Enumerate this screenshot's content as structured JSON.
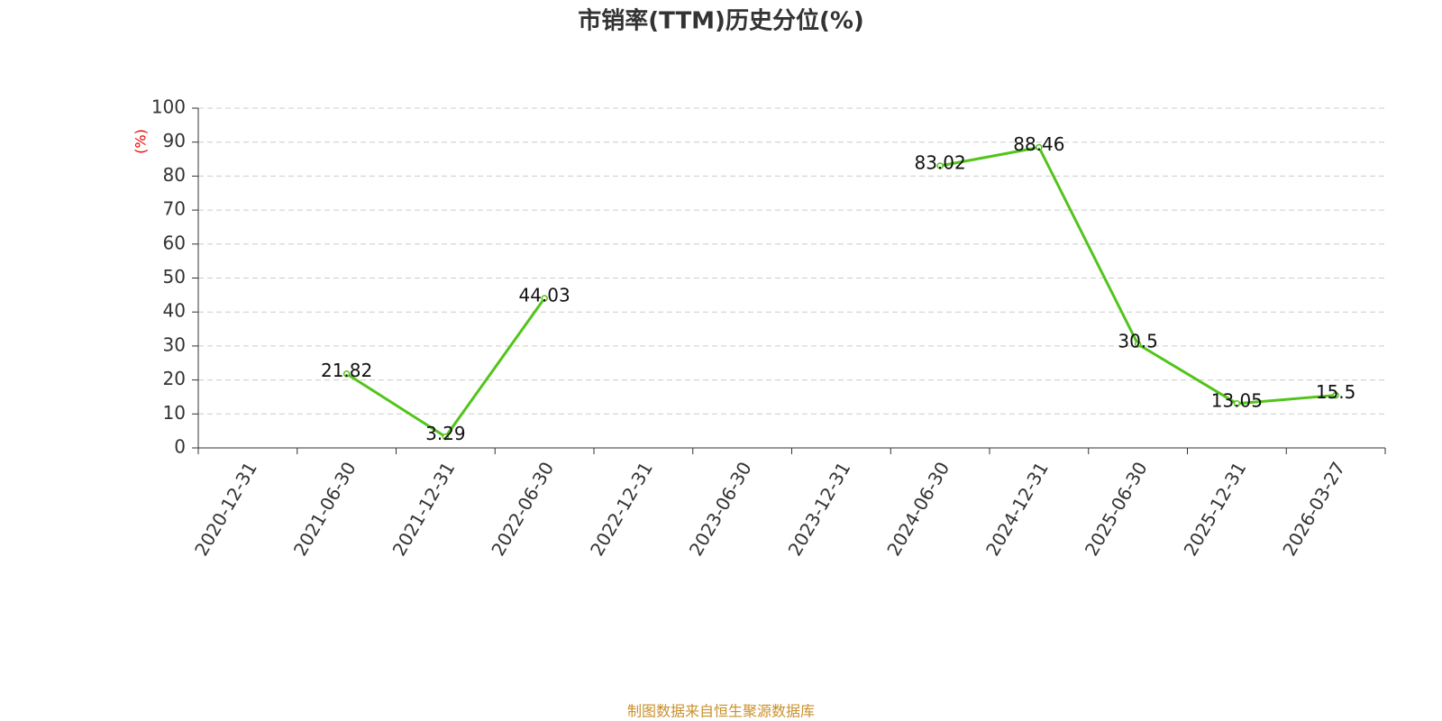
{
  "chart_data": {
    "type": "line",
    "title": "市销率(TTM)历史分位(%)",
    "y_label": "(%)",
    "source": "制图数据来自恒生聚源数据库",
    "categories": [
      "2020-12-31",
      "2021-06-30",
      "2021-12-31",
      "2022-06-30",
      "2022-12-31",
      "2023-06-30",
      "2023-12-31",
      "2024-06-30",
      "2024-12-31",
      "2025-06-30",
      "2025-12-31",
      "2026-03-27"
    ],
    "values": [
      null,
      21.82,
      3.29,
      44.03,
      null,
      null,
      null,
      83.02,
      88.46,
      30.5,
      13.05,
      15.5
    ],
    "color": "#52c41a",
    "ylim": [
      0,
      100
    ],
    "yticks": [
      0,
      10,
      20,
      30,
      40,
      50,
      60,
      70,
      80,
      90,
      100
    ],
    "grid": true
  }
}
